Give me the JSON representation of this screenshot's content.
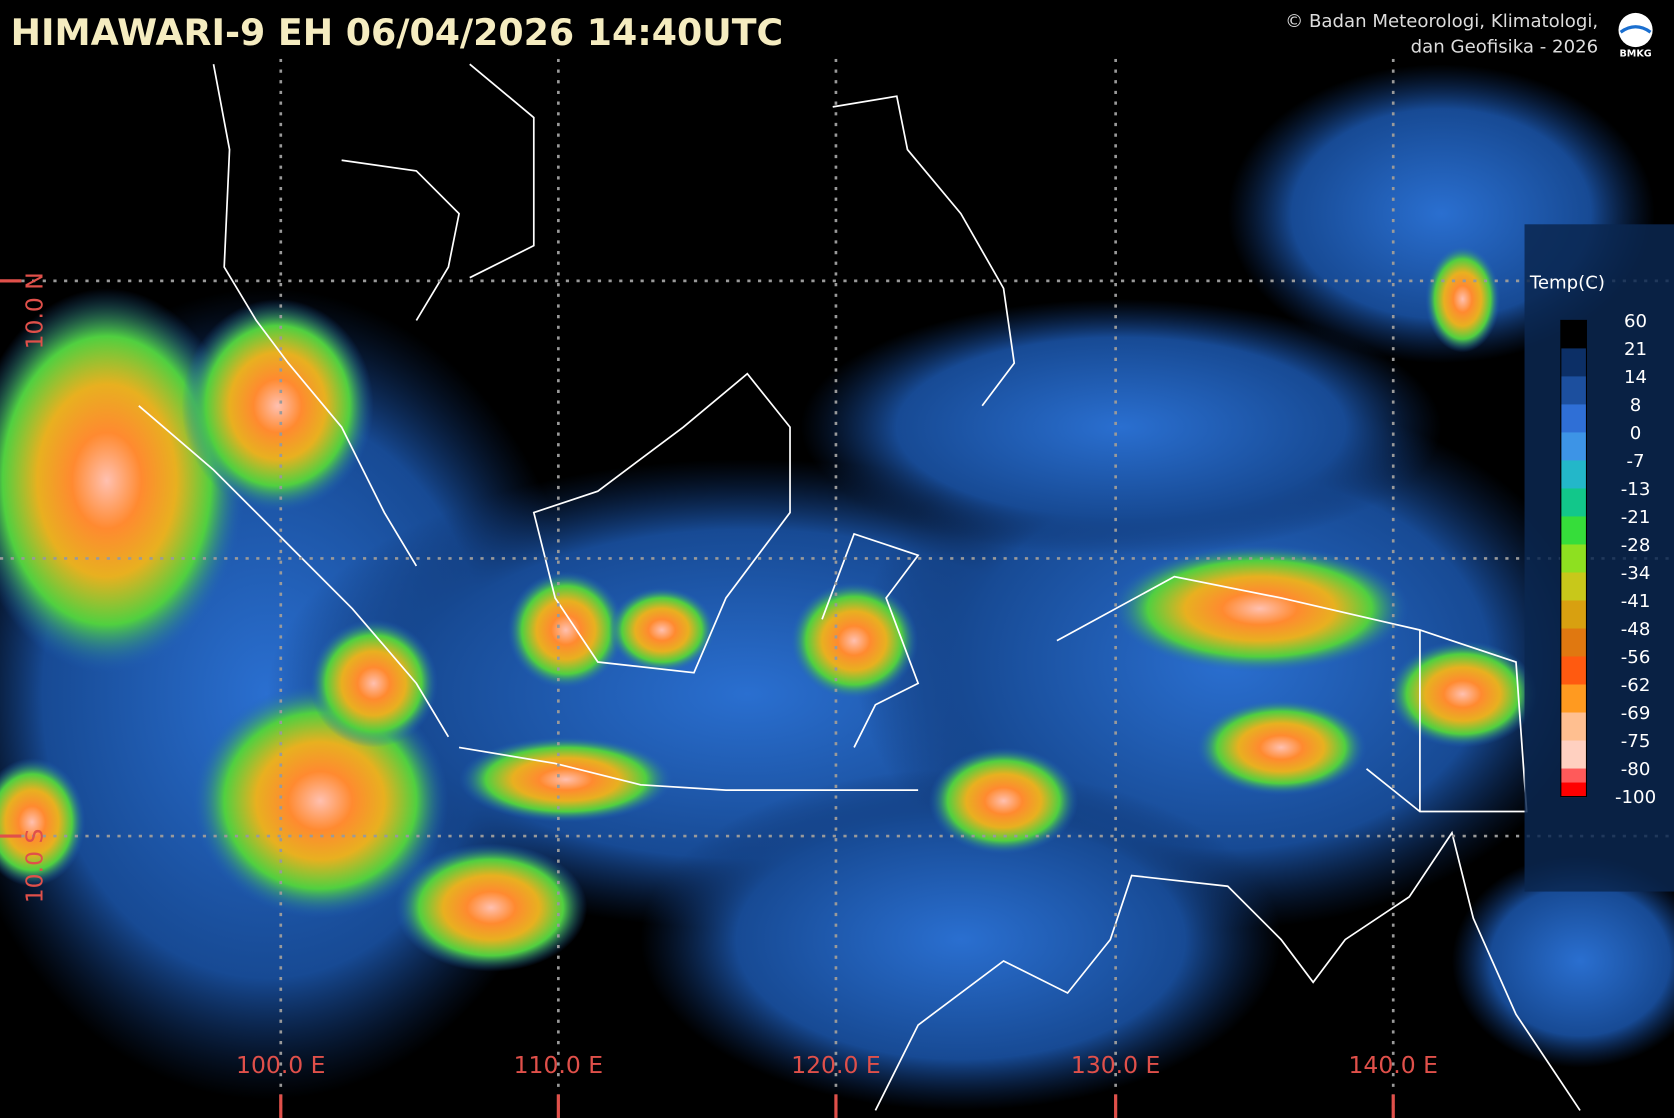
{
  "header": {
    "title": "HIMAWARI-9 EH  06/04/2026 14:40UTC",
    "copyright": [
      "© Badan Meteorologi, Klimatologi,",
      "dan Geofisika -  2026"
    ],
    "logo": "BMKG"
  },
  "grid": {
    "longitudes": [
      "100.0 E",
      "110.0 E",
      "120.0 E",
      "130.0 E",
      "140.0 E"
    ],
    "latitudes": [
      "10.0 N",
      "10.0 S"
    ]
  },
  "legend": {
    "title": "Temp(C)",
    "ticks": [
      60,
      21,
      14,
      8,
      0,
      -7,
      -13,
      -21,
      -28,
      -34,
      -41,
      -48,
      -56,
      -62,
      -69,
      -75,
      -80,
      -100
    ],
    "colors": [
      "#000000",
      "#0c2f66",
      "#1c4f9e",
      "#2f6fd6",
      "#3d94e6",
      "#23b7c9",
      "#12c78a",
      "#36dd3a",
      "#8ee020",
      "#c8c81a",
      "#d8a010",
      "#e07810",
      "#ff5a10",
      "#ff9a20",
      "#ffbf90",
      "#ffd0c0",
      "#ff5a5a",
      "#ff0000"
    ]
  }
}
